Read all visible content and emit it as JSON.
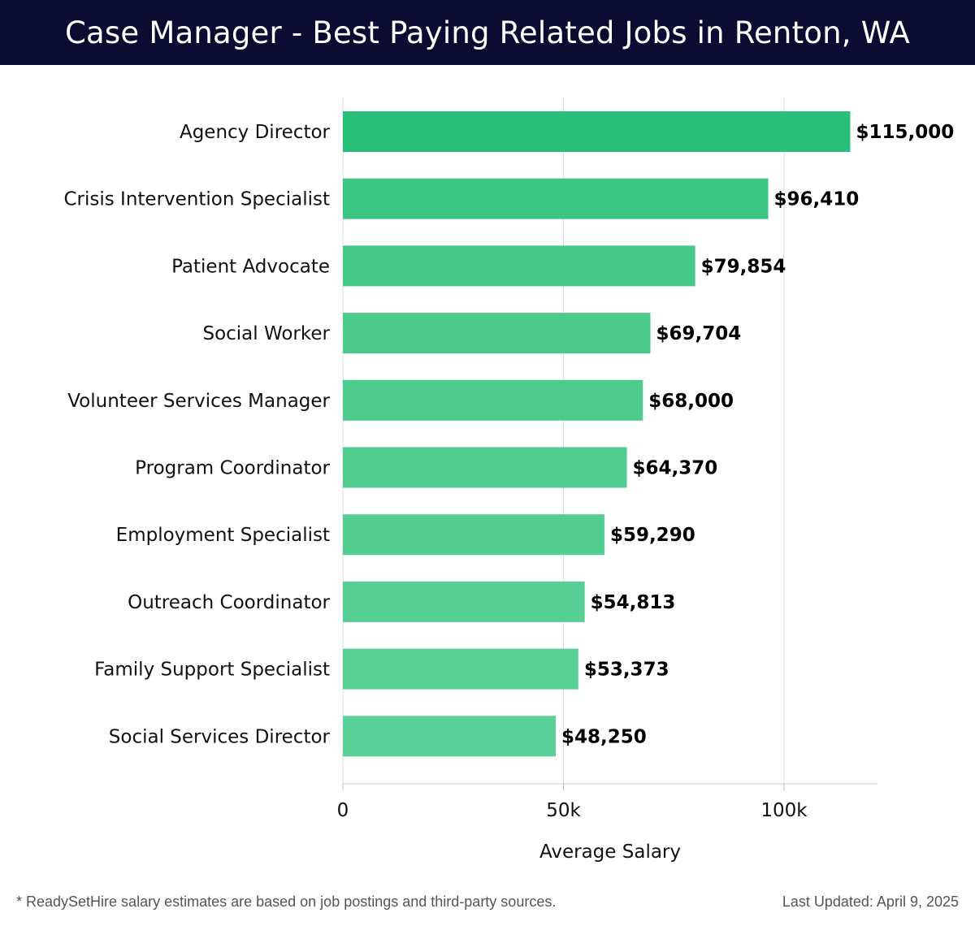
{
  "header": {
    "title": "Case Manager - Best Paying Related Jobs in Renton, WA"
  },
  "chart_data": {
    "type": "bar",
    "orientation": "horizontal",
    "title": "Case Manager - Best Paying Related Jobs in Renton, WA",
    "xlabel": "Average Salary",
    "ylabel": "",
    "xlim": [
      0,
      121000
    ],
    "xticks": [
      0,
      50000,
      100000
    ],
    "xtick_labels": [
      "0",
      "50k",
      "100k"
    ],
    "grid": true,
    "categories": [
      "Agency Director",
      "Crisis Intervention Specialist",
      "Patient Advocate",
      "Social Worker",
      "Volunteer Services Manager",
      "Program Coordinator",
      "Employment Specialist",
      "Outreach Coordinator",
      "Family Support Specialist",
      "Social Services Director"
    ],
    "values": [
      115000,
      96410,
      79854,
      69704,
      68000,
      64370,
      59290,
      54813,
      53373,
      48250
    ],
    "value_labels": [
      "$115,000",
      "$96,410",
      "$79,854",
      "$69,704",
      "$68,000",
      "$64,370",
      "$59,290",
      "$54,813",
      "$53,373",
      "$48,250"
    ],
    "bar_colors": [
      "#2abf78",
      "#3cc583",
      "#46c889",
      "#4bca8c",
      "#4ccb8d",
      "#50cc90",
      "#53cd92",
      "#56ce94",
      "#57cf95",
      "#5bd098"
    ]
  },
  "footer": {
    "note": "* ReadySetHire salary estimates are based on job postings and third-party sources.",
    "updated": "Last Updated: April 9, 2025"
  }
}
